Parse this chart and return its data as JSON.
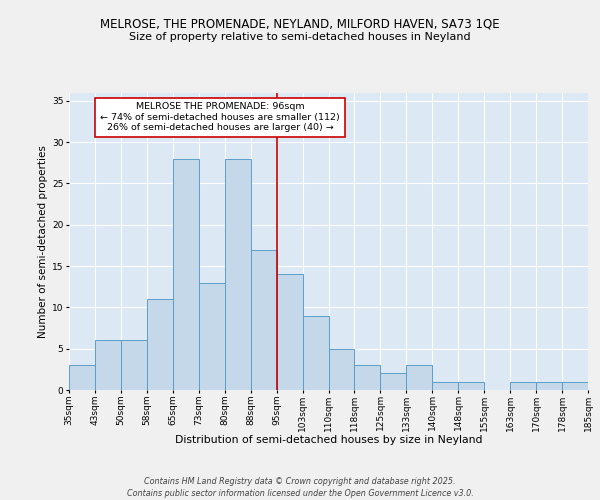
{
  "title1": "MELROSE, THE PROMENADE, NEYLAND, MILFORD HAVEN, SA73 1QE",
  "title2": "Size of property relative to semi-detached houses in Neyland",
  "xlabel": "Distribution of semi-detached houses by size in Neyland",
  "ylabel": "Number of semi-detached properties",
  "categories": [
    "35sqm",
    "43sqm",
    "50sqm",
    "58sqm",
    "65sqm",
    "73sqm",
    "80sqm",
    "88sqm",
    "95sqm",
    "103sqm",
    "110sqm",
    "118sqm",
    "125sqm",
    "133sqm",
    "140sqm",
    "148sqm",
    "155sqm",
    "163sqm",
    "170sqm",
    "178sqm",
    "185sqm"
  ],
  "values": [
    3,
    6,
    6,
    11,
    28,
    13,
    28,
    17,
    14,
    9,
    5,
    3,
    2,
    3,
    1,
    1,
    0,
    1,
    1,
    1
  ],
  "bar_color": "#c5d8ea",
  "bar_edge_color": "#5a9ec9",
  "reference_line_x": 8,
  "reference_line_color": "#cc0000",
  "annotation_text": "MELROSE THE PROMENADE: 96sqm\n← 74% of semi-detached houses are smaller (112)\n26% of semi-detached houses are larger (40) →",
  "annotation_box_color": "#cc0000",
  "background_color": "#dce8f4",
  "grid_color": "#ffffff",
  "fig_background": "#f0f0f0",
  "ylim": [
    0,
    36
  ],
  "yticks": [
    0,
    5,
    10,
    15,
    20,
    25,
    30,
    35
  ],
  "footer_text": "Contains HM Land Registry data © Crown copyright and database right 2025.\nContains public sector information licensed under the Open Government Licence v3.0.",
  "title_fontsize": 8.5,
  "subtitle_fontsize": 8.0,
  "xlabel_fontsize": 7.8,
  "ylabel_fontsize": 7.5,
  "tick_fontsize": 6.5,
  "annotation_fontsize": 6.8,
  "footer_fontsize": 5.8
}
